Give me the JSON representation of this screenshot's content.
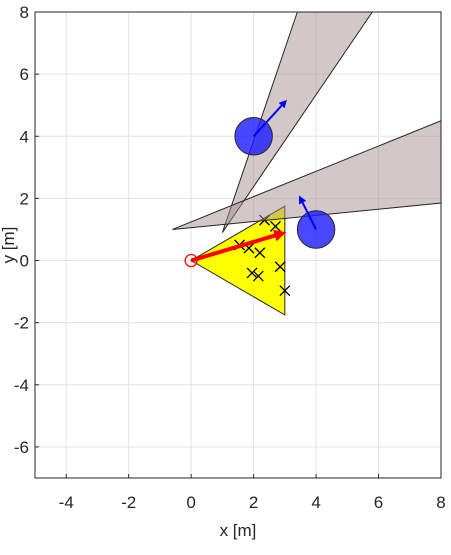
{
  "chart_data": {
    "type": "scatter",
    "xlabel": "x [m]",
    "ylabel": "y [m]",
    "xlim": [
      -5,
      8
    ],
    "ylim": [
      -7,
      8
    ],
    "xticks": [
      -4,
      -2,
      0,
      2,
      4,
      6,
      8
    ],
    "yticks": [
      -6,
      -4,
      -2,
      0,
      2,
      4,
      6,
      8
    ],
    "grid": true,
    "regions": [
      {
        "x": [
          0,
          3,
          3
        ],
        "y": [
          0,
          1.75,
          -1.75
        ],
        "color": "#ffff00",
        "opacity": 1
      },
      {
        "x": [
          1,
          3.4,
          5.8
        ],
        "y": [
          0.9,
          8,
          8
        ],
        "color": "#a89090",
        "opacity": 0.5
      },
      {
        "x": [
          -0.6,
          8,
          8
        ],
        "y": [
          1,
          4.5,
          1.85
        ],
        "color": "#a89090",
        "opacity": 0.5
      }
    ],
    "points": {
      "x": [
        2.35,
        2.7,
        1.55,
        1.85,
        2.2,
        2.85,
        1.95,
        2.15,
        3.0
      ],
      "y": [
        1.3,
        1.1,
        0.5,
        0.4,
        0.25,
        -0.2,
        -0.4,
        -0.5,
        -0.97
      ],
      "color": "#000000"
    },
    "arrows": [
      {
        "x": [
          0,
          2.9
        ],
        "y": [
          0,
          0.87
        ],
        "color": "#ff0000",
        "width": 4
      },
      {
        "x": [
          2,
          3
        ],
        "y": [
          4,
          5.1
        ],
        "color": "#0000ff",
        "width": 2
      },
      {
        "x": [
          4,
          3.5
        ],
        "y": [
          1,
          2
        ],
        "color": "#0000ff",
        "width": 2
      }
    ],
    "obstacles": {
      "x": [
        2,
        4
      ],
      "y": [
        4,
        1
      ],
      "r": [
        0.6,
        0.6
      ],
      "color": "#1a1aff",
      "opacity": 0.8
    },
    "origin": {
      "x": 0,
      "y": 0,
      "color": "#ff0000"
    }
  }
}
